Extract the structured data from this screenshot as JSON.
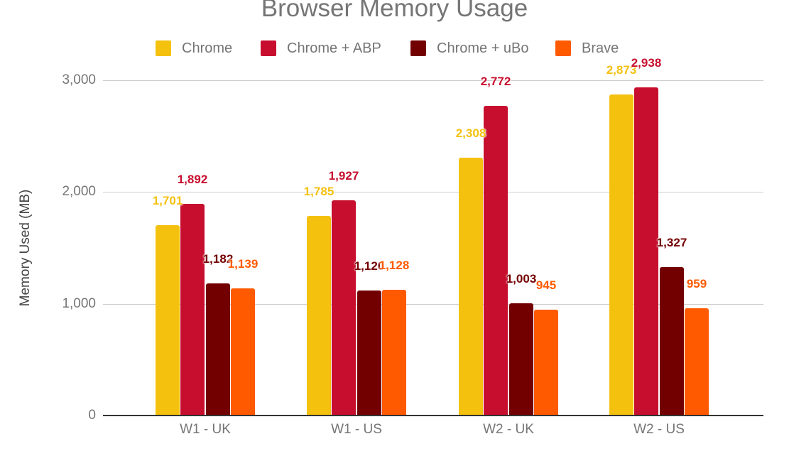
{
  "chart_data": {
    "type": "bar",
    "title": "Browser Memory Usage",
    "xlabel": "",
    "ylabel": "Memory Used (MB)",
    "ylim": [
      0,
      3000
    ],
    "yticks": [
      0,
      1000,
      2000,
      3000
    ],
    "ytick_labels": [
      "0",
      "1,000",
      "2,000",
      "3,000"
    ],
    "grid": true,
    "legend_position": "top",
    "categories": [
      "W1 - UK",
      "W1 - US",
      "W2 - UK",
      "W2 - US"
    ],
    "series": [
      {
        "name": "Chrome",
        "color": "#f4c10f",
        "values": [
          1701,
          1785,
          2308,
          2873
        ],
        "labels": [
          "1,701",
          "1,785",
          "2,308",
          "2,873"
        ]
      },
      {
        "name": "Chrome + ABP",
        "color": "#c70e2e",
        "values": [
          1892,
          1927,
          2772,
          2938
        ],
        "labels": [
          "1,892",
          "1,927",
          "2,772",
          "2,938"
        ]
      },
      {
        "name": "Chrome + uBo",
        "color": "#730000",
        "values": [
          1182,
          1120,
          1003,
          1327
        ],
        "labels": [
          "1,182",
          "1,120",
          "1,003",
          "1,327"
        ]
      },
      {
        "name": "Brave",
        "color": "#ff5a00",
        "values": [
          1139,
          1128,
          945,
          959
        ],
        "labels": [
          "1,139",
          "1,128",
          "945",
          "959"
        ]
      }
    ]
  }
}
